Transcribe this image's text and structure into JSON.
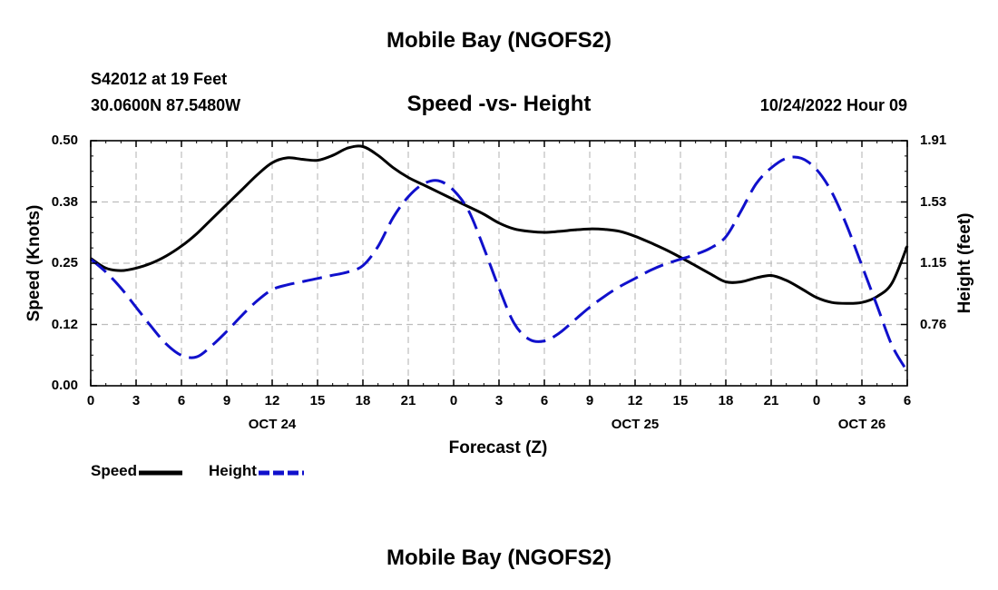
{
  "header": {
    "title": "Mobile Bay (NGOFS2)",
    "station": "S42012 at 19 Feet",
    "coords": "30.0600N  87.5480W",
    "subtitle": "Speed -vs- Height",
    "datetime": "10/24/2022 Hour 09"
  },
  "footer": {
    "title": "Mobile Bay (NGOFS2)"
  },
  "legend": {
    "speed_label": "Speed",
    "height_label": "Height",
    "speed_color": "#000000",
    "height_color": "#1010cc"
  },
  "chart_data": {
    "type": "line",
    "title": "Speed -vs- Height",
    "xlabel": "Forecast (Z)",
    "ylabel": "Speed (Knots)",
    "y2label": "Height (feet)",
    "x_range_hours": [
      0,
      54
    ],
    "x_tick_labels": [
      "0",
      "3",
      "6",
      "9",
      "12",
      "15",
      "18",
      "21",
      "0",
      "3",
      "6",
      "9",
      "12",
      "15",
      "18",
      "21",
      "0",
      "3",
      "6"
    ],
    "date_labels": [
      {
        "label": "OCT 24",
        "hour": 12
      },
      {
        "label": "OCT 25",
        "hour": 36
      },
      {
        "label": "OCT 26",
        "hour": 51
      }
    ],
    "y_left": {
      "ylim": [
        0,
        0.5
      ],
      "ticks": [
        "0.00",
        "0.12",
        "0.25",
        "0.38",
        "0.50"
      ]
    },
    "y_right": {
      "ylim": [
        0.38,
        1.91
      ],
      "ticks": [
        "0.76",
        "1.15",
        "1.53",
        "1.91"
      ]
    },
    "grid": true,
    "series": [
      {
        "name": "Speed",
        "axis": "left",
        "style": "solid",
        "x": [
          0,
          1,
          2,
          3,
          4,
          5,
          6,
          7,
          8,
          9,
          10,
          11,
          12,
          13,
          14,
          15,
          16,
          17,
          18,
          19,
          20,
          21,
          22,
          23,
          24,
          25,
          26,
          27,
          28,
          29,
          30,
          31,
          32,
          33,
          34,
          35,
          36,
          37,
          38,
          39,
          40,
          41,
          42,
          43,
          44,
          45,
          46,
          47,
          48,
          49,
          50,
          51,
          52,
          53,
          54
        ],
        "values": [
          0.26,
          0.24,
          0.235,
          0.24,
          0.25,
          0.265,
          0.285,
          0.31,
          0.34,
          0.37,
          0.4,
          0.43,
          0.455,
          0.465,
          0.462,
          0.46,
          0.47,
          0.485,
          0.488,
          0.47,
          0.445,
          0.425,
          0.41,
          0.395,
          0.38,
          0.365,
          0.35,
          0.332,
          0.32,
          0.315,
          0.313,
          0.315,
          0.318,
          0.32,
          0.319,
          0.315,
          0.305,
          0.292,
          0.278,
          0.262,
          0.245,
          0.228,
          0.212,
          0.212,
          0.22,
          0.225,
          0.215,
          0.198,
          0.18,
          0.17,
          0.168,
          0.17,
          0.182,
          0.21,
          0.285
        ]
      },
      {
        "name": "Height",
        "axis": "right",
        "style": "dashed",
        "x": [
          0,
          1,
          2,
          3,
          4,
          5,
          6,
          7,
          8,
          9,
          10,
          11,
          12,
          13,
          14,
          15,
          16,
          17,
          18,
          19,
          20,
          21,
          22,
          23,
          24,
          25,
          26,
          27,
          28,
          29,
          30,
          31,
          32,
          33,
          34,
          35,
          36,
          37,
          38,
          39,
          40,
          41,
          42,
          43,
          44,
          45,
          46,
          47,
          48,
          49,
          50,
          51,
          52,
          53,
          54
        ],
        "values": [
          1.17,
          1.09,
          0.99,
          0.87,
          0.75,
          0.64,
          0.57,
          0.56,
          0.63,
          0.72,
          0.82,
          0.91,
          0.98,
          1.01,
          1.03,
          1.05,
          1.07,
          1.09,
          1.13,
          1.25,
          1.43,
          1.56,
          1.64,
          1.66,
          1.6,
          1.47,
          1.24,
          0.99,
          0.77,
          0.67,
          0.66,
          0.71,
          0.79,
          0.87,
          0.94,
          1.0,
          1.05,
          1.1,
          1.14,
          1.17,
          1.2,
          1.24,
          1.31,
          1.47,
          1.64,
          1.74,
          1.8,
          1.8,
          1.73,
          1.59,
          1.38,
          1.13,
          0.88,
          0.63,
          0.47
        ]
      }
    ]
  }
}
